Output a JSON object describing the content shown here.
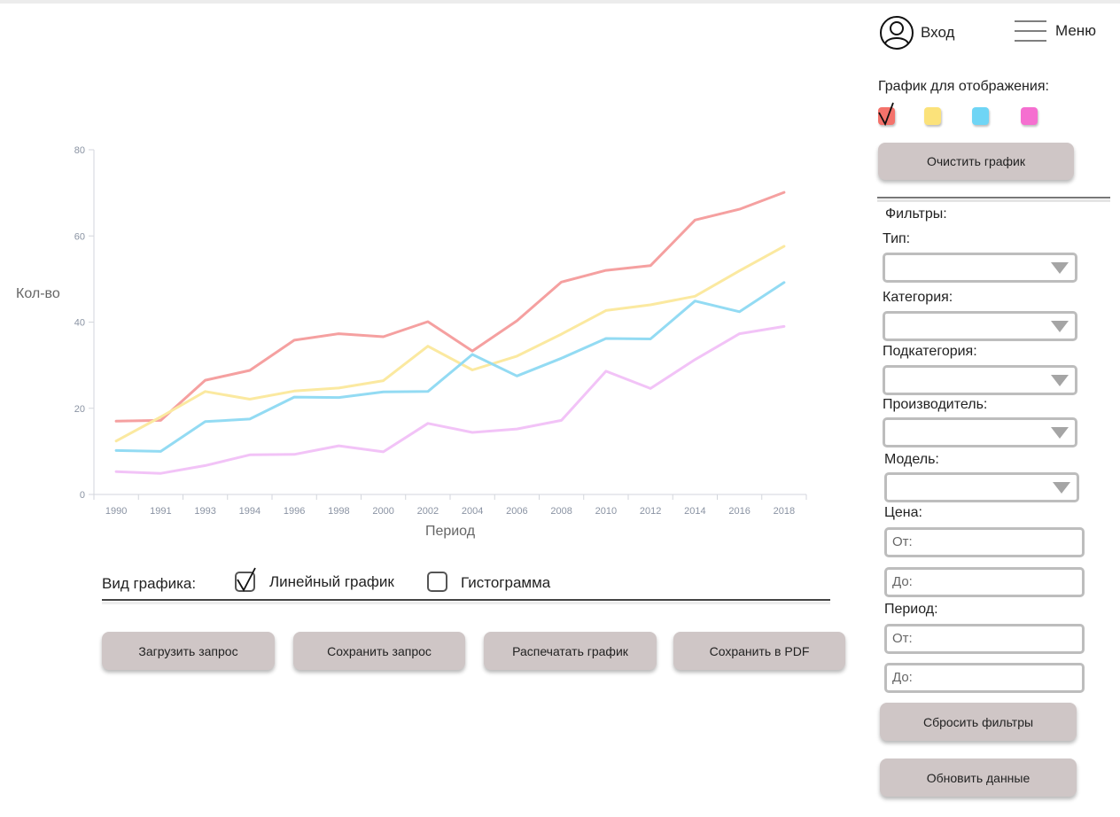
{
  "header": {
    "login_label": "Вход",
    "menu_label": "Меню"
  },
  "panel": {
    "display_label": "График для отображения:",
    "swatches": [
      {
        "color": "#f4726b",
        "checked": true
      },
      {
        "color": "#fbe27a",
        "checked": false
      },
      {
        "color": "#6fd5f5",
        "checked": false
      },
      {
        "color": "#f56fd0",
        "checked": false
      }
    ],
    "clear_button": "Очистить график",
    "filters_label": "Фильтры:",
    "type_label": "Тип:",
    "category_label": "Категория:",
    "subcategory_label": "Подкатегория:",
    "manufacturer_label": "Производитель:",
    "model_label": "Модель:",
    "price_label": "Цена:",
    "price_from": "От:",
    "price_to": "До:",
    "period_label": "Период:",
    "period_from": "От:",
    "period_to": "До:",
    "reset_button": "Сбросить фильтры",
    "refresh_button": "Обновить данные"
  },
  "chart_type": {
    "label": "Вид графика:",
    "line_label": "Линейный график",
    "line_checked": true,
    "histogram_label": "Гистограмма",
    "histogram_checked": false
  },
  "actions": {
    "load": "Загрузить запрос",
    "save": "Сохранить запрос",
    "print": "Распечатать график",
    "pdf": "Сохранить в PDF"
  },
  "chart_data": {
    "type": "line",
    "xlabel": "Период",
    "ylabel": "Кол-во",
    "ylim": [
      0,
      80
    ],
    "yticks": [
      0,
      20,
      40,
      60,
      80
    ],
    "grid": false,
    "categories": [
      "1990",
      "1991",
      "1993",
      "1994",
      "1996",
      "1998",
      "2000",
      "2002",
      "2004",
      "2006",
      "2008",
      "2010",
      "2012",
      "2014",
      "2016",
      "2018"
    ],
    "series": [
      {
        "color": "#f5a0a0",
        "values": [
          17,
          17.2,
          26.5,
          28.8,
          35.8,
          37.3,
          36.6,
          40.1,
          33.3,
          40.3,
          49.3,
          52,
          53.1,
          63.7,
          66.2,
          70.1
        ]
      },
      {
        "color": "#fbe9a0",
        "values": [
          12.4,
          18,
          23.9,
          22.1,
          24,
          24.7,
          26.4,
          34.4,
          28.9,
          32.1,
          37.2,
          42.7,
          44,
          46,
          51.9,
          57.6
        ]
      },
      {
        "color": "#93dbf3",
        "values": [
          10.2,
          10,
          16.9,
          17.5,
          22.6,
          22.5,
          23.8,
          23.9,
          32.5,
          27.5,
          31.6,
          36.2,
          36.1,
          44.9,
          42.4,
          49.2
        ]
      },
      {
        "color": "#f2c3f7",
        "values": [
          5.3,
          4.9,
          6.7,
          9.2,
          9.3,
          11.3,
          9.9,
          16.5,
          14.4,
          15.2,
          17.2,
          28.6,
          24.6,
          31.3,
          37.3,
          39
        ]
      }
    ]
  }
}
